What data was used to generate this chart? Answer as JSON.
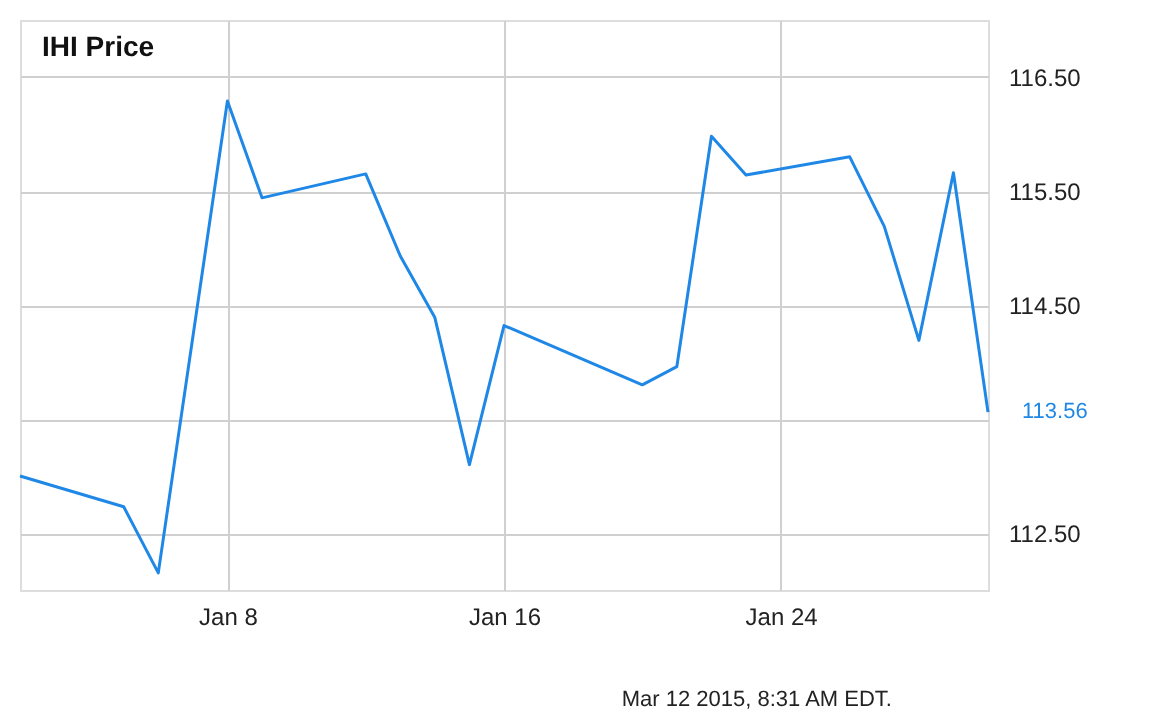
{
  "chart_data": {
    "type": "line",
    "title": "IHI Price",
    "x": [
      "2015-01-02",
      "2015-01-05",
      "2015-01-06",
      "2015-01-08",
      "2015-01-09",
      "2015-01-12",
      "2015-01-13",
      "2015-01-14",
      "2015-01-15",
      "2015-01-16",
      "2015-01-20",
      "2015-01-21",
      "2015-01-22",
      "2015-01-23",
      "2015-01-26",
      "2015-01-27",
      "2015-01-28",
      "2015-01-29",
      "2015-01-30"
    ],
    "series": [
      {
        "color": "#1f88e6",
        "values": [
          113.0,
          112.73,
          112.15,
          116.29,
          115.44,
          115.65,
          114.93,
          114.39,
          113.1,
          114.32,
          113.8,
          113.96,
          115.98,
          115.64,
          115.8,
          115.19,
          114.19,
          115.66,
          113.56
        ],
        "value_labels": [
          null,
          null,
          null,
          null,
          null,
          null,
          null,
          null,
          null,
          null,
          null,
          null,
          null,
          null,
          null,
          null,
          null,
          null,
          "113.56"
        ]
      }
    ],
    "xlim": [
      "2015-01-02",
      "2015-01-30"
    ],
    "xticks": [
      {
        "value": "2015-01-08",
        "label": "Jan 8"
      },
      {
        "value": "2015-01-16",
        "label": "Jan 16"
      },
      {
        "value": "2015-01-24",
        "label": "Jan 24"
      }
    ],
    "ylim": [
      112,
      117
    ],
    "yticks": [
      {
        "value": 112.5,
        "label": "112.50"
      },
      {
        "value": 113.5,
        "label": null
      },
      {
        "value": 114.5,
        "label": "114.50"
      },
      {
        "value": 115.5,
        "label": "115.50"
      },
      {
        "value": 116.5,
        "label": "116.50"
      }
    ],
    "grid": true,
    "annotations": [
      "Mar 12 2015, 8:31 AM EDT."
    ]
  }
}
